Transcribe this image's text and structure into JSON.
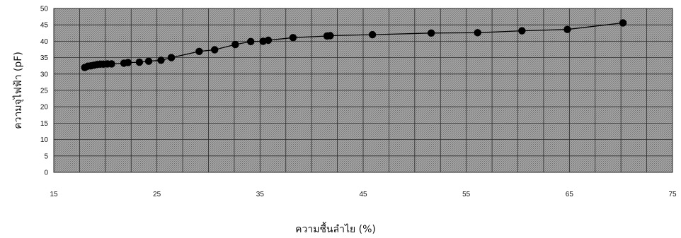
{
  "chart_data": {
    "type": "line",
    "title": "",
    "xlabel": "ความชื้นลำไย (%)",
    "ylabel": "ความจุไฟฟ้า (pF)",
    "xlim": [
      15,
      75
    ],
    "ylim": [
      0,
      50
    ],
    "x_ticks": [
      15,
      25,
      35,
      45,
      55,
      65,
      75
    ],
    "y_ticks": [
      0,
      5,
      10,
      15,
      20,
      25,
      30,
      35,
      40,
      45,
      50
    ],
    "grid": true,
    "legend": "none",
    "colors": {
      "plot_bg": "#9a9a9a",
      "grid": "#2a2a2a",
      "line": "#000000",
      "marker": "#000000"
    },
    "series": [
      {
        "marker": "circle",
        "x": [
          18.0,
          18.3,
          18.6,
          18.9,
          19.2,
          19.5,
          19.8,
          20.2,
          20.6,
          21.8,
          22.2,
          23.3,
          24.2,
          25.4,
          26.4,
          29.1,
          30.6,
          32.6,
          34.1,
          35.3,
          35.8,
          38.2,
          41.5,
          41.8,
          45.9,
          51.6,
          56.1,
          60.4,
          64.8,
          70.2
        ],
        "y": [
          32.0,
          32.4,
          32.5,
          32.7,
          32.9,
          33.0,
          33.0,
          33.1,
          33.1,
          33.3,
          33.5,
          33.6,
          33.9,
          34.2,
          35.0,
          36.9,
          37.4,
          39.0,
          39.9,
          40.0,
          40.3,
          41.1,
          41.6,
          41.7,
          42.0,
          42.5,
          42.6,
          43.2,
          43.6,
          45.6
        ]
      }
    ]
  }
}
